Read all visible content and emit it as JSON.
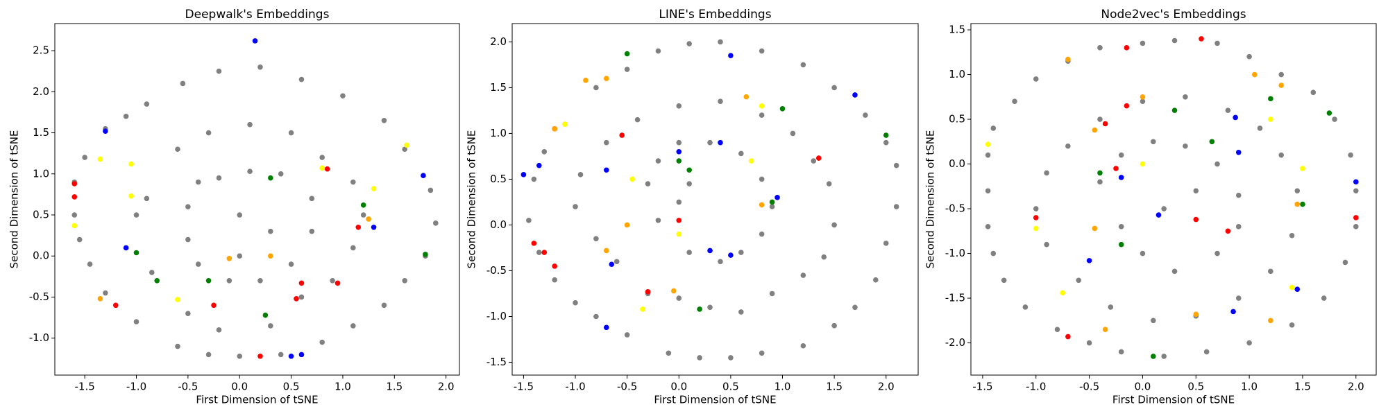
{
  "chart_data": [
    {
      "type": "scatter",
      "title": "Deepwalk's Embeddings",
      "x_label": "First Dimension of tSNE",
      "y_label": "Second Dimension of tSNE",
      "xlim": [
        -1.79,
        2.13
      ],
      "ylim": [
        -1.45,
        2.83
      ],
      "xticks": [
        -1.5,
        {
          "value": -1,
          "label": "-1.0"
        },
        -0.5,
        {
          "value": 0,
          "label": "0.0"
        },
        0.5,
        {
          "value": 1,
          "label": "1.0"
        },
        1.5,
        {
          "value": 2,
          "label": "2.0"
        }
      ],
      "yticks": [
        {
          "value": -1,
          "label": "-1.0"
        },
        -0.5,
        {
          "value": 0,
          "label": "0.0"
        },
        0.5,
        {
          "value": 1,
          "label": "1.0"
        },
        1.5,
        {
          "value": 2,
          "label": "2.0"
        },
        2.5
      ],
      "series": [
        {
          "color": "#808080",
          "x": [
            -1.6,
            -1.55,
            -1.45,
            -1.3,
            -1.0,
            -0.6,
            -0.3,
            0.0,
            0.4,
            0.8,
            1.1,
            1.4,
            1.6,
            1.8,
            1.9,
            1.85,
            1.6,
            1.4,
            1.0,
            0.6,
            0.2,
            -0.2,
            -0.55,
            -0.9,
            -1.1,
            -1.3,
            -1.5,
            -1.6,
            -1.0,
            -0.9,
            -0.85,
            -0.5,
            -0.2,
            0.3,
            0.6,
            0.9,
            1.1,
            1.2,
            1.1,
            0.8,
            0.5,
            0.1,
            -0.3,
            -0.6,
            -0.4,
            -0.5,
            -0.5,
            -0.4,
            -0.1,
            0.2,
            0.5,
            0.7,
            0.7,
            0.4,
            0.1,
            -0.2,
            0.0,
            0.0,
            0.3
          ],
          "y": [
            0.5,
            0.2,
            -0.1,
            -0.45,
            -0.8,
            -1.1,
            -1.2,
            -1.22,
            -1.2,
            -1.05,
            -0.85,
            -0.6,
            -0.3,
            0.0,
            0.4,
            0.8,
            1.3,
            1.65,
            1.95,
            2.15,
            2.3,
            2.25,
            2.1,
            1.85,
            1.7,
            1.55,
            1.2,
            0.9,
            0.5,
            0.7,
            -0.2,
            -0.7,
            -0.9,
            -0.85,
            -0.5,
            -0.3,
            0.1,
            0.5,
            0.9,
            1.2,
            1.5,
            1.6,
            1.5,
            1.3,
            0.9,
            0.6,
            0.2,
            -0.1,
            -0.3,
            -0.3,
            -0.1,
            0.3,
            0.7,
            1.0,
            1.03,
            0.95,
            0.0,
            0.5,
            0.3
          ]
        },
        {
          "color": "#0000ff",
          "x": [
            0.15,
            -1.3,
            -1.1,
            1.78,
            1.3,
            0.6,
            0.5
          ],
          "y": [
            2.62,
            1.52,
            0.1,
            0.98,
            0.35,
            -1.2,
            -1.22
          ]
        },
        {
          "color": "#ff0000",
          "x": [
            -1.6,
            -1.2,
            0.85,
            0.6,
            -0.25,
            0.95,
            1.15,
            0.55,
            0.2,
            -1.6
          ],
          "y": [
            0.88,
            -0.6,
            1.06,
            -0.33,
            -0.6,
            -0.33,
            0.35,
            -0.52,
            -1.22,
            0.72
          ]
        },
        {
          "color": "#008000",
          "x": [
            -1.0,
            0.3,
            -0.8,
            1.8,
            0.25,
            -0.3,
            1.2
          ],
          "y": [
            0.04,
            0.95,
            -0.3,
            0.02,
            -0.72,
            -0.3,
            0.62
          ]
        },
        {
          "color": "#ffff00",
          "x": [
            -1.35,
            -1.05,
            -1.05,
            -0.6,
            1.3,
            1.62,
            0.8,
            -1.6
          ],
          "y": [
            1.18,
            1.12,
            0.73,
            -0.53,
            0.82,
            1.35,
            1.07,
            0.37
          ]
        },
        {
          "color": "#ffa500",
          "x": [
            -1.35,
            0.3,
            1.25,
            -0.1
          ],
          "y": [
            -0.52,
            0.0,
            0.45,
            -0.03
          ]
        }
      ]
    },
    {
      "type": "scatter",
      "title": "LINE's Embeddings",
      "x_label": "First Dimension of tSNE",
      "y_label": "Second Dimension of tSNE",
      "xlim": [
        -1.61,
        2.31
      ],
      "ylim": [
        -1.64,
        2.2
      ],
      "xticks": [
        -1.5,
        {
          "value": -1,
          "label": "-1.0"
        },
        -0.5,
        {
          "value": 0,
          "label": "0.0"
        },
        0.5,
        {
          "value": 1,
          "label": "1.0"
        },
        1.5,
        {
          "value": 2,
          "label": "2.0"
        }
      ],
      "yticks": [
        -1.5,
        {
          "value": -1,
          "label": "-1.0"
        },
        -0.5,
        {
          "value": 0,
          "label": "0.0"
        },
        0.5,
        {
          "value": 1,
          "label": "1.0"
        },
        1.5,
        {
          "value": 2,
          "label": "2.0"
        }
      ],
      "series": [
        {
          "color": "#808080",
          "x": [
            -1.45,
            -1.4,
            -1.3,
            -1.1,
            -0.8,
            -0.5,
            -0.2,
            0.1,
            0.4,
            0.8,
            1.2,
            1.5,
            1.8,
            2.0,
            2.1,
            2.1,
            2.0,
            1.9,
            1.7,
            1.5,
            1.2,
            0.8,
            0.5,
            0.2,
            -0.1,
            -0.5,
            -0.8,
            -1.0,
            -1.2,
            -1.35,
            -1.0,
            -0.95,
            -0.7,
            -0.4,
            0.0,
            0.4,
            0.8,
            1.1,
            1.3,
            1.45,
            1.5,
            1.4,
            1.2,
            0.9,
            0.6,
            0.3,
            0.0,
            -0.3,
            -0.6,
            -0.8,
            -0.3,
            -0.2,
            0.0,
            0.3,
            0.6,
            0.8,
            0.9,
            0.8,
            0.6,
            0.4,
            0.1,
            -0.2,
            0.0,
            0.1
          ],
          "y": [
            0.05,
            0.5,
            0.8,
            1.1,
            1.5,
            1.7,
            1.9,
            1.98,
            2.0,
            1.9,
            1.75,
            1.5,
            1.2,
            0.9,
            0.65,
            0.2,
            -0.2,
            -0.6,
            -0.9,
            -1.1,
            -1.32,
            -1.4,
            -1.45,
            -1.45,
            -1.4,
            -1.2,
            -1.0,
            -0.85,
            -0.6,
            -0.3,
            0.2,
            0.55,
            0.9,
            1.15,
            1.3,
            1.35,
            1.2,
            1.0,
            0.7,
            0.45,
            0.0,
            -0.35,
            -0.55,
            -0.75,
            -0.95,
            -0.9,
            -0.8,
            -0.75,
            -0.4,
            -0.15,
            0.45,
            0.7,
            0.9,
            0.9,
            0.78,
            0.5,
            0.2,
            -0.1,
            -0.3,
            -0.4,
            -0.3,
            0.05,
            0.25,
            0.45
          ]
        },
        {
          "color": "#0000ff",
          "x": [
            -1.5,
            -1.35,
            -0.7,
            0.0,
            0.4,
            0.5,
            0.3,
            -0.65,
            -0.7,
            0.95,
            1.7,
            0.5
          ],
          "y": [
            0.55,
            0.65,
            0.6,
            0.8,
            0.9,
            -0.33,
            -0.28,
            -0.43,
            -1.12,
            0.3,
            1.42,
            1.85
          ]
        },
        {
          "color": "#ff0000",
          "x": [
            -1.4,
            -1.3,
            -1.2,
            -0.3,
            -0.55,
            1.35,
            0.0,
            -1.2
          ],
          "y": [
            -0.2,
            -0.3,
            -0.45,
            -0.73,
            0.98,
            0.73,
            0.05,
            1.05
          ]
        },
        {
          "color": "#008000",
          "x": [
            0.0,
            1.0,
            2.0,
            0.9,
            0.2,
            -0.5,
            0.1
          ],
          "y": [
            0.7,
            1.27,
            0.98,
            0.25,
            -0.92,
            1.87,
            0.6
          ]
        },
        {
          "color": "#ffff00",
          "x": [
            -1.1,
            -0.35,
            0.7,
            0.8,
            0.0,
            -0.45
          ],
          "y": [
            1.1,
            -0.92,
            0.7,
            1.3,
            -0.1,
            0.5
          ]
        },
        {
          "color": "#ffa500",
          "x": [
            -1.2,
            -0.9,
            -0.7,
            -0.7,
            -0.05,
            0.8,
            0.65,
            -0.5
          ],
          "y": [
            1.05,
            1.58,
            1.6,
            -0.28,
            -0.72,
            0.22,
            1.4,
            0.0
          ]
        }
      ]
    },
    {
      "type": "scatter",
      "title": "Node2vec's Embeddings",
      "x_label": "First Dimension of tSNE",
      "y_label": "Second Dimension of tSNE",
      "xlim": [
        -1.61,
        2.19
      ],
      "ylim": [
        -2.36,
        1.57
      ],
      "xticks": [
        -1.5,
        {
          "value": -1,
          "label": "-1.0"
        },
        -0.5,
        {
          "value": 0,
          "label": "0.0"
        },
        0.5,
        {
          "value": 1,
          "label": "1.0"
        },
        1.5,
        {
          "value": 2,
          "label": "2.0"
        }
      ],
      "yticks": [
        {
          "value": -2,
          "label": "-2.0"
        },
        -1.5,
        {
          "value": -1,
          "label": "-1.0"
        },
        -0.5,
        {
          "value": 0,
          "label": "0.0"
        },
        0.5,
        {
          "value": 1,
          "label": "1.0"
        },
        1.5
      ],
      "series": [
        {
          "color": "#808080",
          "x": [
            -1.45,
            -1.45,
            -1.4,
            -1.2,
            -1.0,
            -0.7,
            -0.4,
            0.0,
            0.3,
            0.7,
            1.0,
            1.3,
            1.6,
            1.8,
            1.95,
            2.0,
            2.0,
            1.9,
            1.7,
            1.4,
            1.0,
            0.6,
            0.2,
            -0.2,
            -0.5,
            -0.8,
            -1.1,
            -1.3,
            -1.4,
            -1.45,
            -1.0,
            -0.9,
            -0.7,
            -0.4,
            0.0,
            0.4,
            0.8,
            1.1,
            1.3,
            1.45,
            1.4,
            1.2,
            0.9,
            0.5,
            0.1,
            -0.3,
            -0.6,
            -0.9,
            -0.4,
            -0.2,
            0.1,
            0.4,
            0.7,
            0.9,
            0.9,
            0.7,
            0.3,
            0.0,
            -0.2,
            0.2,
            0.5
          ],
          "y": [
            -0.3,
            0.1,
            0.4,
            0.7,
            0.95,
            1.15,
            1.3,
            1.35,
            1.38,
            1.35,
            1.2,
            1.0,
            0.8,
            0.5,
            0.1,
            -0.3,
            -0.7,
            -1.1,
            -1.5,
            -1.8,
            -2.0,
            -2.1,
            -2.15,
            -2.1,
            -2.0,
            -1.85,
            -1.6,
            -1.3,
            -1.0,
            -0.7,
            -0.5,
            -0.1,
            0.2,
            0.5,
            0.7,
            0.75,
            0.6,
            0.4,
            0.1,
            -0.3,
            -0.8,
            -1.2,
            -1.5,
            -1.7,
            -1.75,
            -1.6,
            -1.3,
            -0.9,
            -0.2,
            0.1,
            0.25,
            0.2,
            0.0,
            -0.35,
            -0.7,
            -1.0,
            -1.2,
            -1.0,
            -0.7,
            -0.5,
            -0.3
          ]
        },
        {
          "color": "#ff0000",
          "x": [
            0.55,
            -0.15,
            -0.15,
            -0.35,
            -0.25,
            2.0,
            0.5,
            0.8,
            -0.7,
            -1.0
          ],
          "y": [
            1.4,
            1.3,
            0.65,
            0.45,
            -0.05,
            -0.6,
            -0.62,
            -0.75,
            -1.93,
            -0.6
          ]
        },
        {
          "color": "#0000ff",
          "x": [
            -0.2,
            0.87,
            2.0,
            1.45,
            0.85,
            -0.5,
            0.15,
            0.9
          ],
          "y": [
            -0.15,
            0.52,
            -0.2,
            -1.4,
            -1.65,
            -1.08,
            -0.57,
            0.13
          ]
        },
        {
          "color": "#008000",
          "x": [
            0.65,
            1.2,
            1.75,
            1.5,
            -0.2,
            0.1,
            -0.4,
            0.3
          ],
          "y": [
            0.25,
            0.73,
            0.57,
            -0.45,
            -0.9,
            -2.15,
            -0.1,
            0.6
          ]
        },
        {
          "color": "#ffff00",
          "x": [
            -1.45,
            -1.0,
            -0.75,
            1.2,
            1.5,
            1.4,
            0.0
          ],
          "y": [
            0.22,
            -0.72,
            -1.44,
            0.5,
            -0.05,
            -1.38,
            0.0
          ]
        },
        {
          "color": "#ffa500",
          "x": [
            -0.7,
            1.05,
            1.3,
            -0.45,
            -0.45,
            0.5,
            1.45,
            1.2,
            -0.35,
            0.0
          ],
          "y": [
            1.17,
            1.0,
            0.88,
            0.38,
            -0.72,
            -1.68,
            -0.45,
            -1.75,
            -1.85,
            0.75
          ]
        }
      ]
    }
  ]
}
